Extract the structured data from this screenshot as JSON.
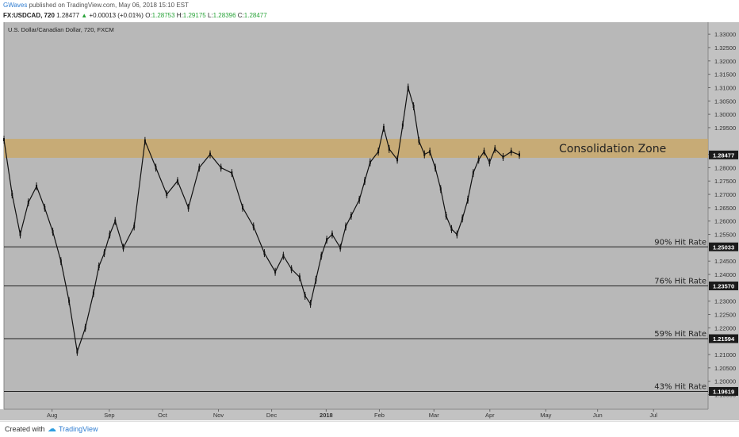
{
  "header": {
    "author": "GWaves",
    "published": " published on TradingView.com, May 06, 2018 15:10 EST",
    "symbol": "FX:USDCAD, 720",
    "last": "1.28477",
    "change": "+0.00013 (+0.01%)",
    "o_label": "O:",
    "o": "1.28753",
    "h_label": "H:",
    "h": "1.29175",
    "l_label": "L:",
    "l": "1.28396",
    "c_label": "C:",
    "c": "1.28477"
  },
  "footer": {
    "created": "Created with",
    "brand": "TradingView",
    "icon": "tradingview-cloud-icon"
  },
  "colors": {
    "background": "#b8b8b8",
    "zone": "#c9a86a",
    "candle": "#111111",
    "line": "#222222",
    "axis_bg": "#c2c2c2",
    "price_tag_bg": "#1a1a1a",
    "price_tag_fg": "#ffffff"
  },
  "chart_data": {
    "type": "line",
    "title": "U.S. Dollar/Canadian Dollar, 720, FXCM",
    "xlabel": "",
    "ylabel": "",
    "x_ticks": [
      "Aug",
      "Sep",
      "Oct",
      "Nov",
      "Dec",
      "2018",
      "Feb",
      "Mar",
      "Apr",
      "May",
      "Jun",
      "Jul",
      "Aug"
    ],
    "y_ticks": [
      "1.33000",
      "1.32500",
      "1.32000",
      "1.31500",
      "1.31000",
      "1.30500",
      "1.30000",
      "1.29500",
      "1.28500",
      "1.28000",
      "1.27500",
      "1.27000",
      "1.26500",
      "1.26000",
      "1.25500",
      "1.24500",
      "1.24000",
      "1.23000",
      "1.22500",
      "1.22000",
      "1.21000",
      "1.20500",
      "1.20000",
      "1.19500",
      "1.19000"
    ],
    "ylim": [
      1.1895,
      1.3345
    ],
    "grid": false,
    "x_index_range": [
      0,
      380
    ],
    "x_tick_index": [
      12,
      54,
      93,
      134,
      173,
      213,
      252,
      292,
      333,
      374,
      412,
      453,
      493
    ],
    "series": [
      {
        "x": [
          0,
          6,
          12,
          18,
          24,
          30,
          36,
          42,
          48,
          54,
          60,
          66,
          70,
          74,
          78,
          82,
          88,
          96,
          104,
          112,
          120,
          128,
          136,
          144,
          152,
          160,
          168,
          176,
          184,
          192,
          200,
          206,
          212,
          218,
          222,
          226,
          230,
          234,
          238,
          242,
          248,
          252,
          256,
          262,
          266,
          270,
          276,
          280,
          284,
          290,
          294,
          298,
          302,
          306,
          310,
          314,
          318,
          322,
          326,
          330,
          334,
          338,
          342,
          346,
          350,
          354,
          358,
          362,
          368,
          374,
          380
        ],
        "values": [
          1.2905,
          1.27,
          1.255,
          1.267,
          1.273,
          1.265,
          1.256,
          1.245,
          1.23,
          1.211,
          1.22,
          1.233,
          1.243,
          1.248,
          1.255,
          1.26,
          1.25,
          1.258,
          1.29,
          1.28,
          1.27,
          1.275,
          1.265,
          1.28,
          1.285,
          1.28,
          1.278,
          1.265,
          1.258,
          1.248,
          1.241,
          1.247,
          1.242,
          1.239,
          1.232,
          1.229,
          1.238,
          1.247,
          1.253,
          1.255,
          1.25,
          1.258,
          1.262,
          1.268,
          1.275,
          1.282,
          1.286,
          1.295,
          1.287,
          1.283,
          1.296,
          1.31,
          1.303,
          1.29,
          1.285,
          1.286,
          1.28,
          1.272,
          1.262,
          1.257,
          1.255,
          1.261,
          1.268,
          1.278,
          1.283,
          1.286,
          1.282,
          1.287,
          1.284,
          1.286,
          1.2848
        ]
      }
    ],
    "zone": {
      "label": "Consolidation Zone",
      "y_low": 1.2837,
      "y_high": 1.2908
    },
    "hlines": [
      {
        "label": "90% Hit Rate",
        "y": 1.25033,
        "tag": "1.25033"
      },
      {
        "label": "76% Hit Rate",
        "y": 1.2357,
        "tag": "1.23570"
      },
      {
        "label": "59% Hit Rate",
        "y": 1.21594,
        "tag": "1.21594"
      },
      {
        "label": "43% Hit Rate",
        "y": 1.19619,
        "tag": "1.19619"
      }
    ],
    "last_price_tag": {
      "y": 1.28477,
      "tag": "1.28477"
    }
  }
}
